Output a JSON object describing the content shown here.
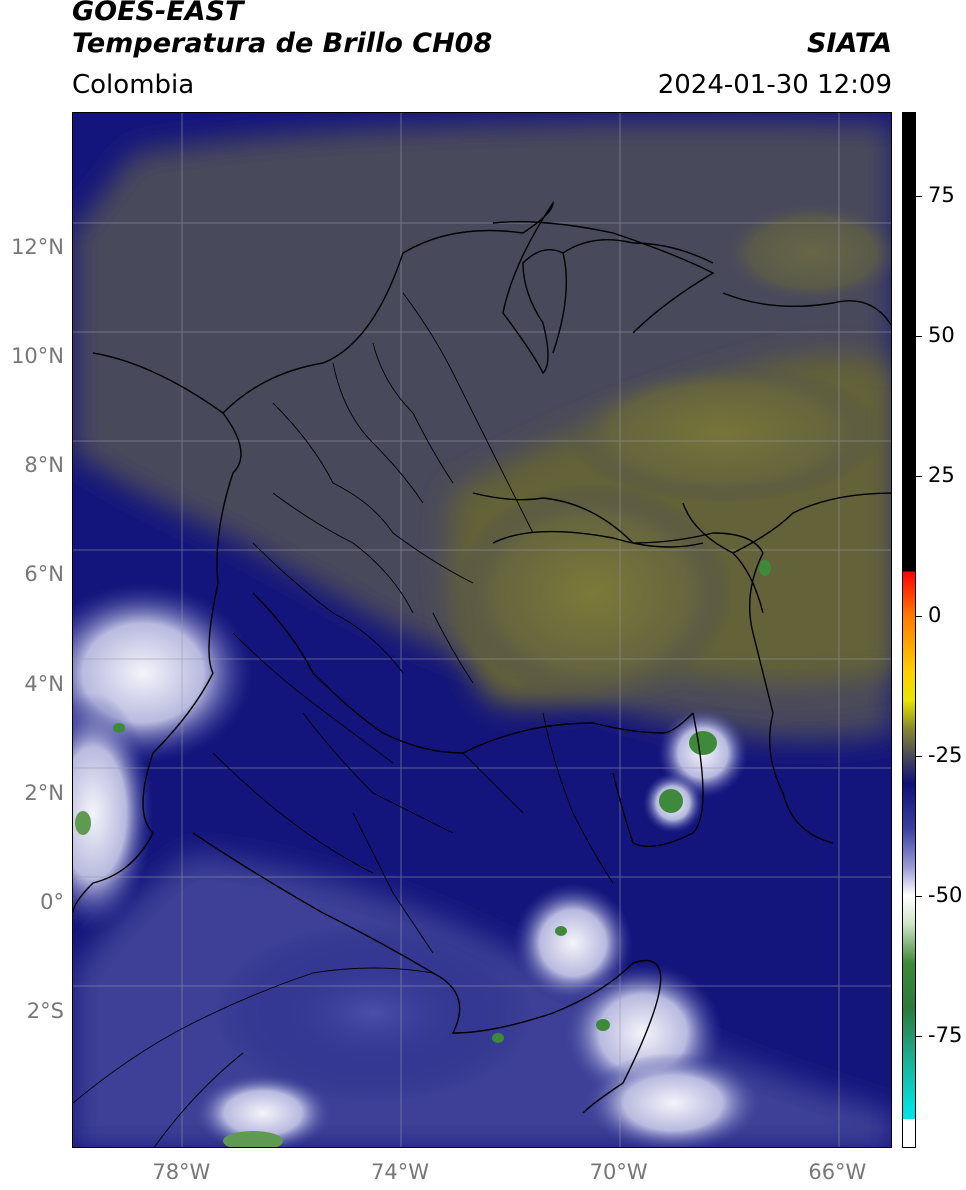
{
  "header": {
    "satellite": "GOES-EAST",
    "product": "Temperatura de Brillo CH08",
    "agency": "SIATA",
    "region": "Colombia",
    "timestamp": "2024-01-30 12:09"
  },
  "map": {
    "lon_range": [
      -80,
      -65
    ],
    "lat_range": [
      -4.5,
      14.5
    ],
    "lat_ticks": [
      {
        "value": 12,
        "label": "12°N"
      },
      {
        "value": 10,
        "label": "10°N"
      },
      {
        "value": 8,
        "label": "8°N"
      },
      {
        "value": 6,
        "label": "6°N"
      },
      {
        "value": 4,
        "label": "4°N"
      },
      {
        "value": 2,
        "label": "2°N"
      },
      {
        "value": 0,
        "label": "0°"
      },
      {
        "value": -2,
        "label": "2°S"
      }
    ],
    "lon_ticks": [
      {
        "value": -78,
        "label": "78°W"
      },
      {
        "value": -74,
        "label": "74°W"
      },
      {
        "value": -70,
        "label": "70°W"
      },
      {
        "value": -66,
        "label": "66°W"
      }
    ],
    "grid": true,
    "colors": {
      "deep_blue": "#12137a",
      "mid_blue": "#3b3f9a",
      "grey": "#4a4a5a",
      "olive": "#6b6a3a",
      "green": "#3f8a3a",
      "white": "#f0f0f8"
    }
  },
  "colorbar": {
    "range": [
      -95,
      90
    ],
    "ticks": [
      {
        "value": 75,
        "label": "75"
      },
      {
        "value": 50,
        "label": "50"
      },
      {
        "value": 25,
        "label": "25"
      },
      {
        "value": 0,
        "label": "0"
      },
      {
        "value": -25,
        "label": "-25"
      },
      {
        "value": -50,
        "label": "-50"
      },
      {
        "value": -75,
        "label": "-75"
      }
    ]
  }
}
